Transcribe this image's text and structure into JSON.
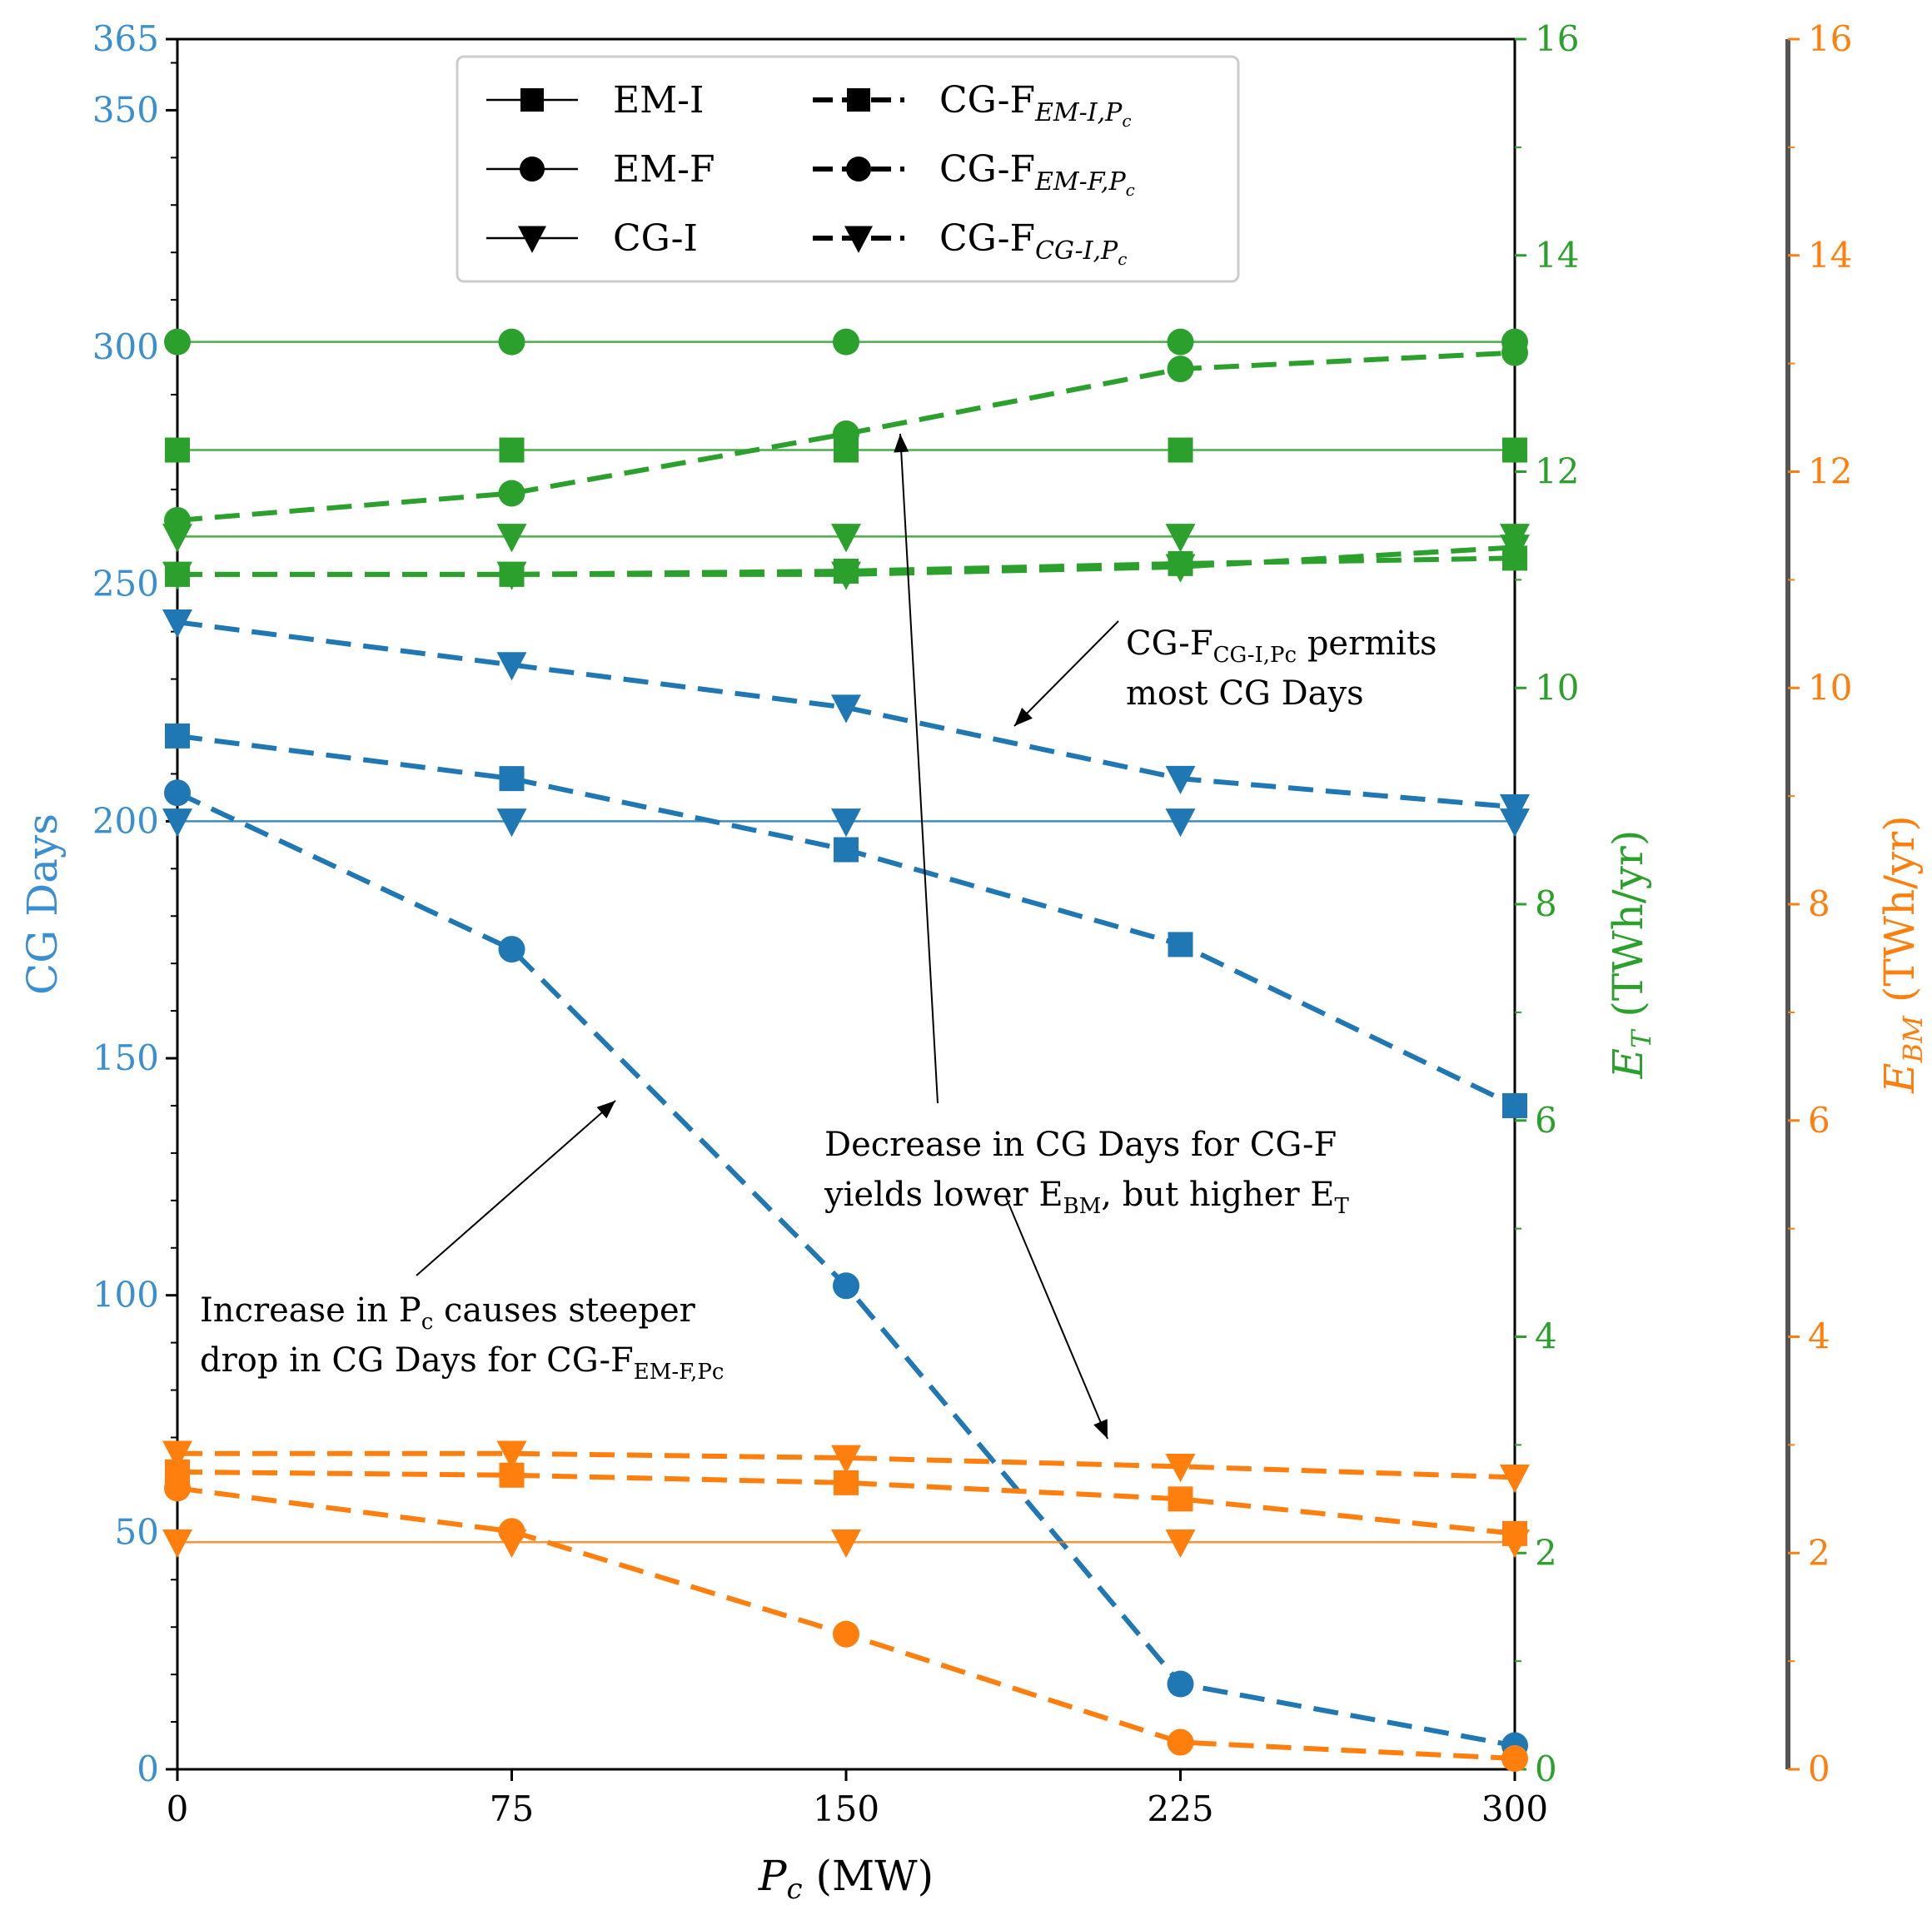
{
  "colors": {
    "blue": "#1f77b4",
    "blue_text": "#3a8fd0",
    "green": "#2ca02c",
    "orange": "#ff7f0e",
    "black": "#000000",
    "gray_spine": "#555555"
  },
  "chart_data": {
    "type": "line",
    "x": [
      0,
      75,
      150,
      225,
      300
    ],
    "xlabel": "P",
    "xlabel_sub": "c",
    "xlabel_unit": " (MW)",
    "xlim": [
      0,
      300
    ],
    "xticks": [
      "0",
      "75",
      "150",
      "225",
      "300"
    ],
    "axes": {
      "left": {
        "label": "CG Days",
        "color": "blue",
        "ylim": [
          0,
          365
        ],
        "ticks": [
          0,
          50,
          100,
          150,
          200,
          250,
          300,
          350,
          365
        ],
        "tick_labels": [
          "0",
          "50",
          "100",
          "150",
          "200",
          "250",
          "300",
          "350",
          "365"
        ]
      },
      "right1": {
        "label_main": "E",
        "label_sub": "T",
        "label_unit": " (TWh/yr)",
        "color": "green",
        "ylim": [
          0,
          16
        ],
        "ticks": [
          0,
          2,
          4,
          6,
          8,
          10,
          12,
          14,
          16
        ],
        "tick_labels": [
          "0",
          "2",
          "4",
          "6",
          "8",
          "10",
          "12",
          "14",
          "16"
        ]
      },
      "right2": {
        "label_main": "E",
        "label_sub": "BM",
        "label_unit": " (TWh/yr)",
        "color": "orange",
        "ylim": [
          0,
          16
        ],
        "ticks": [
          0,
          2,
          4,
          6,
          8,
          10,
          12,
          14,
          16
        ],
        "tick_labels": [
          "0",
          "2",
          "4",
          "6",
          "8",
          "10",
          "12",
          "14",
          "16"
        ]
      }
    },
    "legend": {
      "position": "upper-center",
      "entries": [
        {
          "label": "EM-I",
          "style": "solid",
          "marker": "square"
        },
        {
          "label": "EM-F",
          "style": "solid",
          "marker": "circle"
        },
        {
          "label": "CG-I",
          "style": "solid",
          "marker": "triangle"
        },
        {
          "label": "CG-F",
          "sub": "EM-I,P",
          "subsub": "c",
          "style": "dashed",
          "marker": "square"
        },
        {
          "label": "CG-F",
          "sub": "EM-F,P",
          "subsub": "c",
          "style": "dashed",
          "marker": "circle"
        },
        {
          "label": "CG-F",
          "sub": "CG-I,P",
          "subsub": "c",
          "style": "dashed",
          "marker": "triangle"
        }
      ]
    },
    "series": [
      {
        "name": "EM-I (E_T)",
        "axis": "right1",
        "color": "green",
        "style": "solid",
        "marker": "square",
        "values": [
          12.2,
          12.2,
          12.2,
          12.2,
          12.2
        ]
      },
      {
        "name": "EM-F (E_T)",
        "axis": "right1",
        "color": "green",
        "style": "solid",
        "marker": "circle",
        "values": [
          13.2,
          13.2,
          13.2,
          13.2,
          13.2
        ]
      },
      {
        "name": "CG-I (E_T)",
        "axis": "right1",
        "color": "green",
        "style": "solid",
        "marker": "triangle",
        "values": [
          11.4,
          11.4,
          11.4,
          11.4,
          11.4
        ]
      },
      {
        "name": "CG-F EM-I,Pc (E_T)",
        "axis": "right1",
        "color": "green",
        "style": "dashed",
        "marker": "square",
        "values": [
          11.05,
          11.05,
          11.08,
          11.15,
          11.2
        ]
      },
      {
        "name": "CG-F EM-F,Pc (E_T)",
        "axis": "right1",
        "color": "green",
        "style": "dashed",
        "marker": "circle",
        "values": [
          11.55,
          11.8,
          12.35,
          12.95,
          13.1
        ]
      },
      {
        "name": "CG-F CG-I,Pc (E_T)",
        "axis": "right1",
        "color": "green",
        "style": "dashed",
        "marker": "triangle",
        "values": [
          11.05,
          11.05,
          11.05,
          11.12,
          11.3
        ]
      },
      {
        "name": "CG-I (CG Days)",
        "axis": "left",
        "color": "blue",
        "style": "solid",
        "marker": "triangle",
        "values": [
          200,
          200,
          200,
          200,
          200
        ]
      },
      {
        "name": "CG-F EM-I,Pc (CG Days)",
        "axis": "left",
        "color": "blue",
        "style": "dashed",
        "marker": "square",
        "values": [
          218,
          209,
          194,
          174,
          140
        ]
      },
      {
        "name": "CG-F EM-F,Pc (CG Days)",
        "axis": "left",
        "color": "blue",
        "style": "dashed",
        "marker": "circle",
        "values": [
          206,
          173,
          102,
          18,
          5
        ]
      },
      {
        "name": "CG-F CG-I,Pc (CG Days)",
        "axis": "left",
        "color": "blue",
        "style": "dashed",
        "marker": "triangle",
        "values": [
          242,
          233,
          224,
          209,
          203
        ]
      },
      {
        "name": "CG-I (E_BM)",
        "axis": "right2",
        "color": "orange",
        "style": "solid",
        "marker": "triangle",
        "values": [
          2.1,
          2.1,
          2.1,
          2.1,
          2.1
        ]
      },
      {
        "name": "CG-F EM-I,Pc (E_BM)",
        "axis": "right2",
        "color": "orange",
        "style": "dashed",
        "marker": "square",
        "values": [
          2.75,
          2.72,
          2.65,
          2.5,
          2.18
        ]
      },
      {
        "name": "CG-F EM-F,Pc (E_BM)",
        "axis": "right2",
        "color": "orange",
        "style": "dashed",
        "marker": "circle",
        "values": [
          2.6,
          2.2,
          1.25,
          0.25,
          0.1
        ]
      },
      {
        "name": "CG-F CG-I,Pc (E_BM)",
        "axis": "right2",
        "color": "orange",
        "style": "dashed",
        "marker": "triangle",
        "values": [
          2.92,
          2.92,
          2.88,
          2.8,
          2.7
        ]
      }
    ],
    "annotations": [
      {
        "lines": [
          [
            {
              "t": "CG-F"
            },
            {
              "t": "CG-I,Pc",
              "sub": true
            },
            {
              "t": " permits"
            }
          ],
          [
            {
              "t": "most CG Days"
            }
          ]
        ]
      },
      {
        "lines": [
          [
            {
              "t": "Decrease in CG Days for CG-F"
            }
          ],
          [
            {
              "t": "yields lower E"
            },
            {
              "t": "BM",
              "sub": true
            },
            {
              "t": ", but higher E"
            },
            {
              "t": "T",
              "sub": true
            }
          ]
        ]
      },
      {
        "lines": [
          [
            {
              "t": "Increase in P"
            },
            {
              "t": "c",
              "sub": true
            },
            {
              "t": " causes steeper"
            }
          ],
          [
            {
              "t": "drop in CG Days for CG-F"
            },
            {
              "t": "EM-F,Pc",
              "sub": true
            }
          ]
        ]
      }
    ]
  }
}
